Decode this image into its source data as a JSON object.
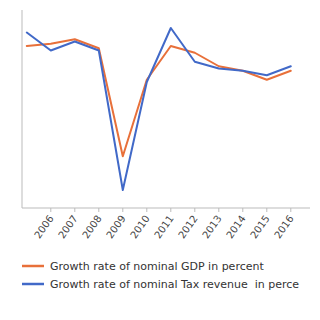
{
  "chart_data": {
    "type": "line",
    "x": [
      2005,
      2006,
      2007,
      2008,
      2009,
      2010,
      2011,
      2012,
      2013,
      2014,
      2015,
      2016
    ],
    "series": [
      {
        "name": "Growth rate of nominal GDP in percent",
        "color": "#E8703A",
        "values": [
          10.0,
          10.5,
          11.5,
          9.5,
          -14.5,
          2.5,
          10.0,
          8.5,
          5.5,
          4.5,
          2.5,
          4.5
        ]
      },
      {
        "name": "Growth rate of nominal Tax revenue  in perce",
        "color": "#4169C8",
        "values": [
          13.0,
          9.0,
          11.0,
          9.0,
          -22.0,
          2.0,
          14.0,
          6.5,
          5.0,
          4.5,
          3.5,
          5.5
        ]
      }
    ],
    "xlim": [
      2004.8,
      2016.8
    ],
    "xticks": [
      2006,
      2007,
      2008,
      2009,
      2010,
      2011,
      2012,
      2013,
      2014,
      2015,
      2016
    ],
    "ylim": [
      -26,
      18
    ],
    "yticks": [],
    "grid": false,
    "tick_labels": "x",
    "legend": "bottom"
  }
}
